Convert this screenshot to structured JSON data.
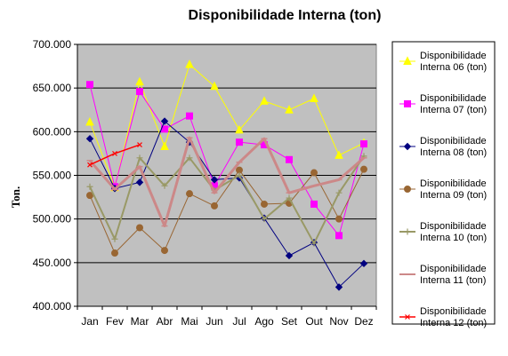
{
  "chart_data": {
    "type": "line",
    "title": "Disponibilidade Interna (ton)",
    "xlabel": "",
    "ylabel": "Ton.",
    "ylim": [
      400000,
      700000
    ],
    "yticks": [
      "700.000",
      "650.000",
      "600.000",
      "550.000",
      "500.000",
      "450.000",
      "400.000"
    ],
    "ytick_values": [
      700000,
      650000,
      600000,
      550000,
      500000,
      450000,
      400000
    ],
    "categories": [
      "Jan",
      "Fev",
      "Mar",
      "Abr",
      "Mai",
      "Jun",
      "Jul",
      "Ago",
      "Set",
      "Out",
      "Nov",
      "Dez"
    ],
    "grid": true,
    "legend_position": "right",
    "series": [
      {
        "name_line1": "Disponibilidade",
        "name_line2": "Interna 06 (ton)",
        "color": "#ffff00",
        "marker": "triangle",
        "values": [
          611000,
          536000,
          657000,
          583000,
          677000,
          652000,
          602000,
          635000,
          625000,
          638000,
          573000,
          587000
        ]
      },
      {
        "name_line1": "Disponibilidade",
        "name_line2": "Interna 07 (ton)",
        "color": "#ff00ff",
        "marker": "square",
        "values": [
          654000,
          537000,
          646000,
          603000,
          618000,
          538000,
          588000,
          585000,
          568000,
          517000,
          481000,
          586000
        ]
      },
      {
        "name_line1": "Disponibilidade",
        "name_line2": "Interna 08 (ton)",
        "color": "#000080",
        "marker": "diamond",
        "values": [
          592000,
          535000,
          542000,
          612000,
          588000,
          545000,
          547000,
          501000,
          458000,
          473000,
          422000,
          449000
        ]
      },
      {
        "name_line1": "Disponibilidade",
        "name_line2": "Interna 09 (ton)",
        "color": "#996633",
        "marker": "circle",
        "values": [
          527000,
          461000,
          490000,
          464000,
          529000,
          515000,
          556000,
          517000,
          518000,
          553000,
          500000,
          557000
        ]
      },
      {
        "name_line1": "Disponibilidade",
        "name_line2": "Interna 10 (ton)",
        "color": "#999966",
        "marker": "plus",
        "values": [
          537000,
          477000,
          570000,
          538000,
          570000,
          533000,
          550000,
          500000,
          524000,
          472000,
          530000,
          572000
        ]
      },
      {
        "name_line1": "Disponibilidade",
        "name_line2": "Interna 11 (ton)",
        "color": "#cc8888",
        "marker": "dash",
        "values": [
          567000,
          534000,
          560000,
          492000,
          593000,
          530000,
          565000,
          592000,
          530000,
          538000,
          545000,
          570000
        ]
      },
      {
        "name_line1": "Disponibilidade",
        "name_line2": "Interna 12 (ton)",
        "color": "#ff0000",
        "marker": "x",
        "values": [
          562000,
          575000,
          585000,
          null,
          null,
          null,
          null,
          null,
          null,
          null,
          null,
          null
        ]
      }
    ]
  }
}
